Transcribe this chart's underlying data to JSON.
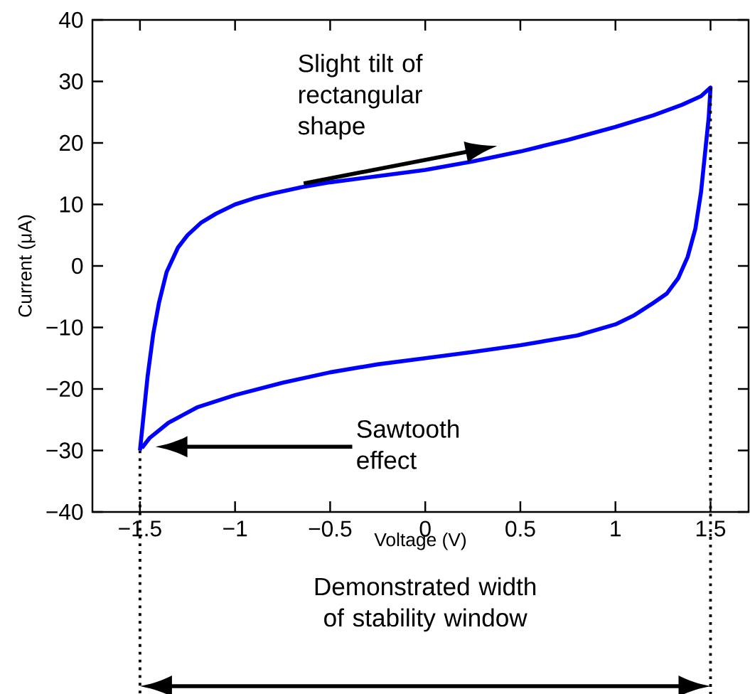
{
  "chart_data": {
    "type": "line",
    "xlabel": "Voltage (V)",
    "ylabel": "Current (μA)",
    "xlim": [
      -1.75,
      1.7
    ],
    "ylim": [
      -40,
      40
    ],
    "xticks": [
      {
        "value": -1.5,
        "label": "−1.5"
      },
      {
        "value": -1,
        "label": "−1"
      },
      {
        "value": -0.5,
        "label": "−0.5"
      },
      0,
      0.5,
      1,
      1.5
    ],
    "yticks": [
      {
        "value": -40,
        "label": "−40"
      },
      {
        "value": -30,
        "label": "−30"
      },
      {
        "value": -20,
        "label": "−20"
      },
      {
        "value": -10,
        "label": "−10"
      },
      0,
      10,
      20,
      30,
      40
    ],
    "series": [
      {
        "color": "#0000ff",
        "x": [
          -1.5,
          -1.48,
          -1.46,
          -1.43,
          -1.4,
          -1.36,
          -1.3,
          -1.25,
          -1.18,
          -1.1,
          -1.0,
          -0.9,
          -0.8,
          -0.65,
          -0.5,
          -0.25,
          0.0,
          0.25,
          0.5,
          0.75,
          1.0,
          1.2,
          1.35,
          1.45,
          1.5,
          1.49,
          1.47,
          1.45,
          1.42,
          1.38,
          1.33,
          1.27,
          1.2,
          1.1,
          1.0,
          0.8,
          0.5,
          0.25,
          0.0,
          -0.25,
          -0.5,
          -0.75,
          -1.0,
          -1.2,
          -1.35,
          -1.45,
          -1.49
        ],
        "values": [
          -30,
          -24,
          -18,
          -11,
          -6,
          -1,
          3,
          5,
          7,
          8.5,
          10,
          11,
          11.8,
          12.8,
          13.6,
          14.6,
          15.6,
          17,
          18.6,
          20.5,
          22.6,
          24.5,
          26.2,
          27.6,
          29,
          24,
          18,
          12,
          6,
          1.5,
          -2,
          -4.5,
          -6,
          -8,
          -9.5,
          -11.3,
          -12.9,
          -14,
          -15,
          -16,
          -17.3,
          -19,
          -21,
          -23,
          -25.5,
          -28,
          -29.6
        ]
      }
    ],
    "grid": false,
    "marker": "none",
    "line_style": "solid",
    "ref_lines": [
      {
        "axis": "x",
        "value": -1.5,
        "line_style": "dotted"
      },
      {
        "axis": "x",
        "value": 1.5,
        "line_style": "dotted"
      }
    ],
    "annotations": [
      "Slight tilt of rectangular shape",
      "Sawtooth effect",
      "Demonstrated width of stability window"
    ]
  }
}
